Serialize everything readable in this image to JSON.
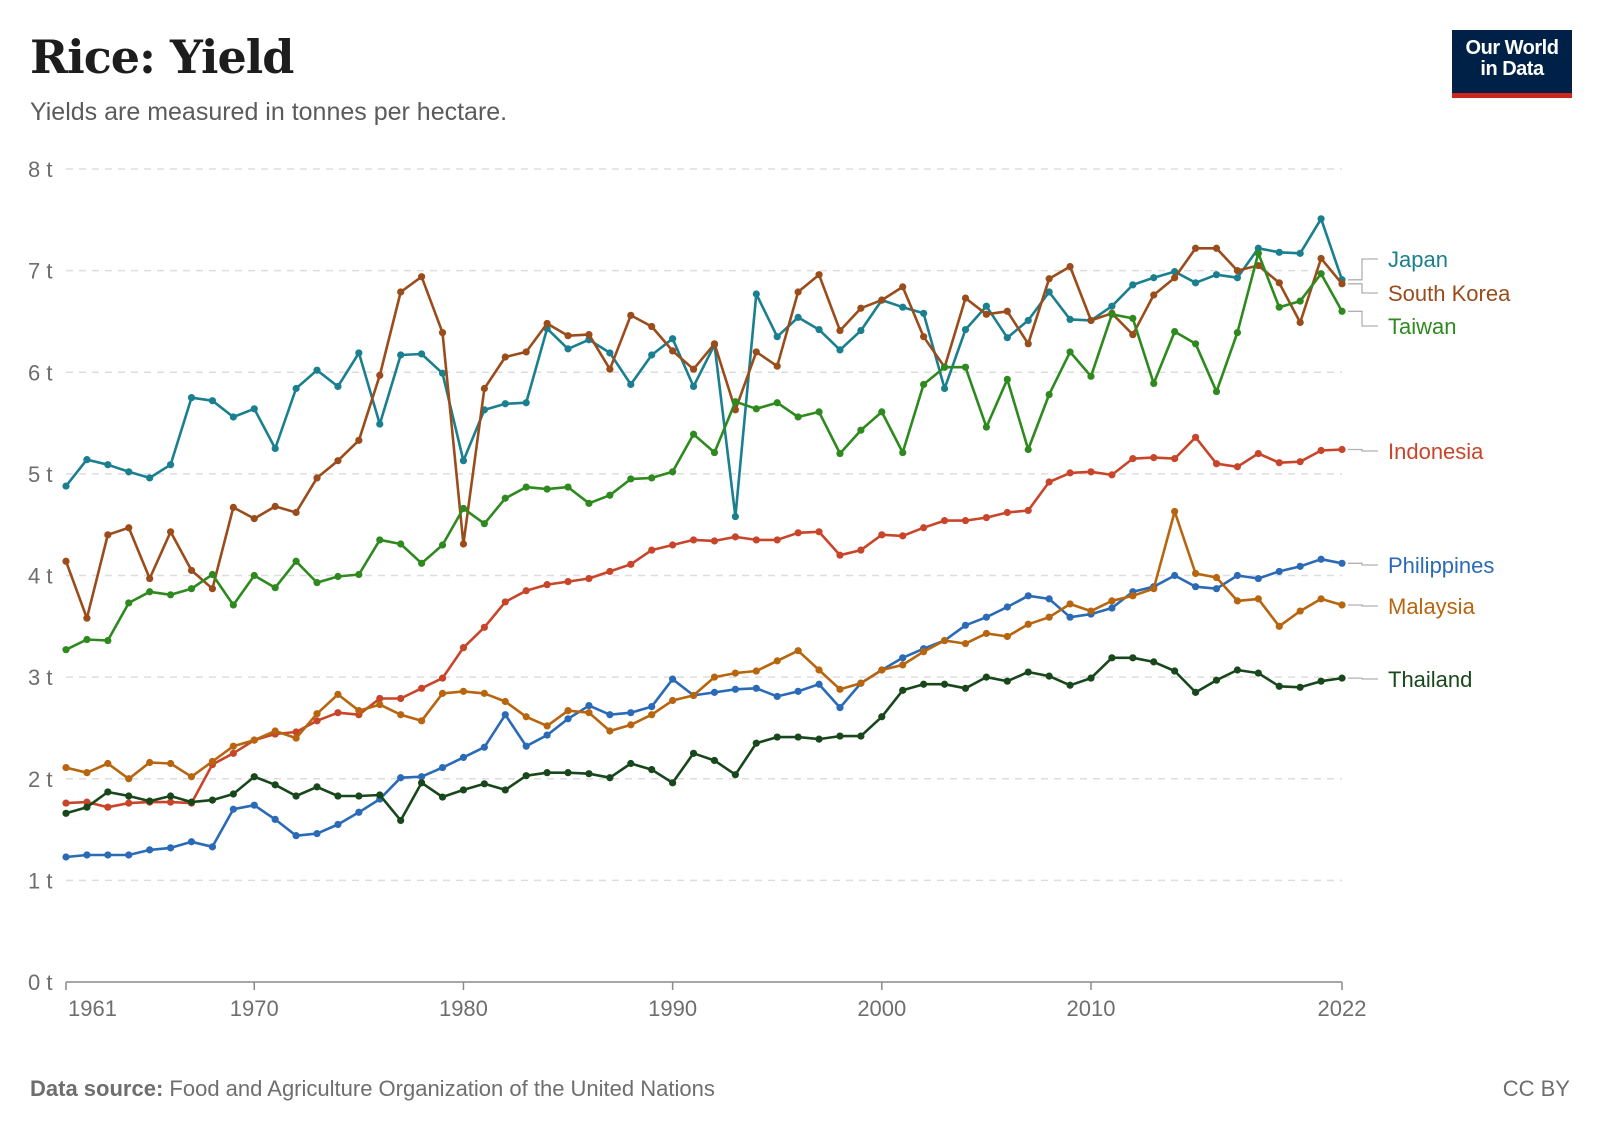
{
  "header": {
    "title": "Rice: Yield",
    "subtitle": "Yields are measured in tonnes per hectare.",
    "logo_line1": "Our World",
    "logo_line2": "in Data"
  },
  "footer": {
    "source_label": "Data source:",
    "source_text": "Food and Agriculture Organization of the United Nations",
    "license": "CC BY"
  },
  "chart_data": {
    "type": "line",
    "title": "Rice: Yield",
    "subtitle": "Yields are measured in tonnes per hectare.",
    "xlabel": "",
    "ylabel": "",
    "xlim": [
      1961,
      2022
    ],
    "ylim": [
      0,
      8
    ],
    "y_ticks": [
      0,
      1,
      2,
      3,
      4,
      5,
      6,
      7,
      8
    ],
    "y_tick_labels": [
      "0 t",
      "1 t",
      "2 t",
      "3 t",
      "4 t",
      "5 t",
      "6 t",
      "7 t",
      "8 t"
    ],
    "x_ticks": [
      1961,
      1970,
      1980,
      1990,
      2000,
      2010,
      2022
    ],
    "x_tick_labels": [
      "1961",
      "1970",
      "1980",
      "1990",
      "2000",
      "2010",
      "2022"
    ],
    "grid": "horizontal dashed",
    "legend": "line-end labels on the right",
    "x": [
      1961,
      1962,
      1963,
      1964,
      1965,
      1966,
      1967,
      1968,
      1969,
      1970,
      1971,
      1972,
      1973,
      1974,
      1975,
      1976,
      1977,
      1978,
      1979,
      1980,
      1981,
      1982,
      1983,
      1984,
      1985,
      1986,
      1987,
      1988,
      1989,
      1990,
      1991,
      1992,
      1993,
      1994,
      1995,
      1996,
      1997,
      1998,
      1999,
      2000,
      2001,
      2002,
      2003,
      2004,
      2005,
      2006,
      2007,
      2008,
      2009,
      2010,
      2011,
      2012,
      2013,
      2014,
      2015,
      2016,
      2017,
      2018,
      2019,
      2020,
      2021,
      2022
    ],
    "series": [
      {
        "name": "Japan",
        "color": "#1a7f8e",
        "values": [
          4.88,
          5.14,
          5.09,
          5.02,
          4.96,
          5.09,
          5.75,
          5.72,
          5.56,
          5.64,
          5.25,
          5.84,
          6.02,
          5.86,
          6.19,
          5.49,
          6.17,
          6.18,
          5.99,
          5.13,
          5.63,
          5.69,
          5.7,
          6.43,
          6.23,
          6.32,
          6.19,
          5.88,
          6.17,
          6.33,
          5.86,
          6.27,
          4.58,
          6.77,
          6.35,
          6.54,
          6.42,
          6.22,
          6.41,
          6.71,
          6.64,
          6.58,
          5.84,
          6.42,
          6.65,
          6.34,
          6.51,
          6.79,
          6.52,
          6.51,
          6.65,
          6.86,
          6.93,
          6.99,
          6.88,
          6.96,
          6.93,
          7.22,
          7.18,
          7.17,
          7.51,
          6.91
        ]
      },
      {
        "name": "South Korea",
        "color": "#9a4c1b",
        "values": [
          4.14,
          3.58,
          4.4,
          4.47,
          3.97,
          4.43,
          4.05,
          3.87,
          4.67,
          4.56,
          4.68,
          4.62,
          4.96,
          5.13,
          5.33,
          5.97,
          6.79,
          6.94,
          6.39,
          4.31,
          5.84,
          6.15,
          6.2,
          6.48,
          6.36,
          6.37,
          6.03,
          6.56,
          6.45,
          6.21,
          6.03,
          6.28,
          5.63,
          6.2,
          6.06,
          6.79,
          6.96,
          6.41,
          6.63,
          6.71,
          6.84,
          6.35,
          6.05,
          6.73,
          6.57,
          6.6,
          6.28,
          6.92,
          7.04,
          6.51,
          6.58,
          6.37,
          6.76,
          6.93,
          7.22,
          7.22,
          7.0,
          7.05,
          6.88,
          6.49,
          7.12,
          6.87
        ]
      },
      {
        "name": "Taiwan",
        "color": "#2e8a1e",
        "values": [
          3.27,
          3.37,
          3.36,
          3.73,
          3.84,
          3.81,
          3.87,
          4.01,
          3.71,
          4.0,
          3.88,
          4.14,
          3.93,
          3.99,
          4.01,
          4.35,
          4.31,
          4.12,
          4.3,
          4.66,
          4.51,
          4.76,
          4.87,
          4.85,
          4.87,
          4.71,
          4.79,
          4.95,
          4.96,
          5.02,
          5.39,
          5.21,
          5.71,
          5.64,
          5.7,
          5.56,
          5.61,
          5.2,
          5.43,
          5.61,
          5.21,
          5.88,
          6.05,
          6.05,
          5.46,
          5.93,
          5.24,
          5.78,
          6.2,
          5.96,
          6.57,
          6.53,
          5.89,
          6.4,
          6.28,
          5.81,
          6.39,
          7.17,
          6.64,
          6.7,
          6.97,
          6.6
        ]
      },
      {
        "name": "Indonesia",
        "color": "#c9452a",
        "values": [
          1.76,
          1.77,
          1.72,
          1.76,
          1.77,
          1.77,
          1.76,
          2.14,
          2.25,
          2.38,
          2.44,
          2.46,
          2.57,
          2.65,
          2.63,
          2.79,
          2.79,
          2.89,
          2.99,
          3.29,
          3.49,
          3.74,
          3.85,
          3.91,
          3.94,
          3.97,
          4.04,
          4.11,
          4.25,
          4.3,
          4.35,
          4.34,
          4.38,
          4.35,
          4.35,
          4.42,
          4.43,
          4.2,
          4.25,
          4.4,
          4.39,
          4.47,
          4.54,
          4.54,
          4.57,
          4.62,
          4.64,
          4.92,
          5.01,
          5.02,
          4.99,
          5.15,
          5.16,
          5.15,
          5.36,
          5.1,
          5.07,
          5.2,
          5.11,
          5.12,
          5.23,
          5.24
        ]
      },
      {
        "name": "Philippines",
        "color": "#2a6ab6",
        "values": [
          1.23,
          1.25,
          1.25,
          1.25,
          1.3,
          1.32,
          1.38,
          1.33,
          1.7,
          1.74,
          1.6,
          1.44,
          1.46,
          1.55,
          1.67,
          1.8,
          2.01,
          2.02,
          2.11,
          2.21,
          2.31,
          2.63,
          2.32,
          2.43,
          2.59,
          2.72,
          2.63,
          2.65,
          2.71,
          2.98,
          2.82,
          2.85,
          2.88,
          2.89,
          2.81,
          2.86,
          2.93,
          2.7,
          2.94,
          3.07,
          3.19,
          3.28,
          3.36,
          3.51,
          3.59,
          3.69,
          3.8,
          3.77,
          3.59,
          3.62,
          3.68,
          3.84,
          3.89,
          4.0,
          3.89,
          3.87,
          4.0,
          3.97,
          4.04,
          4.09,
          4.16,
          4.12
        ]
      },
      {
        "name": "Malaysia",
        "color": "#b8650f",
        "values": [
          2.11,
          2.06,
          2.15,
          2.0,
          2.16,
          2.15,
          2.02,
          2.17,
          2.32,
          2.38,
          2.47,
          2.4,
          2.64,
          2.83,
          2.67,
          2.73,
          2.63,
          2.57,
          2.84,
          2.86,
          2.84,
          2.76,
          2.61,
          2.52,
          2.67,
          2.65,
          2.47,
          2.53,
          2.63,
          2.77,
          2.82,
          3.0,
          3.04,
          3.06,
          3.16,
          3.26,
          3.07,
          2.88,
          2.94,
          3.07,
          3.12,
          3.25,
          3.36,
          3.33,
          3.43,
          3.4,
          3.52,
          3.59,
          3.72,
          3.65,
          3.75,
          3.8,
          3.87,
          4.63,
          4.02,
          3.98,
          3.75,
          3.77,
          3.5,
          3.65,
          3.77,
          3.71
        ]
      },
      {
        "name": "Thailand",
        "color": "#18471b",
        "values": [
          1.66,
          1.72,
          1.87,
          1.83,
          1.78,
          1.83,
          1.77,
          1.79,
          1.85,
          2.02,
          1.94,
          1.83,
          1.92,
          1.83,
          1.83,
          1.84,
          1.59,
          1.96,
          1.82,
          1.89,
          1.95,
          1.89,
          2.03,
          2.06,
          2.06,
          2.05,
          2.01,
          2.15,
          2.09,
          1.96,
          2.25,
          2.18,
          2.04,
          2.35,
          2.41,
          2.41,
          2.39,
          2.42,
          2.42,
          2.61,
          2.87,
          2.93,
          2.93,
          2.89,
          3.0,
          2.96,
          3.05,
          3.01,
          2.92,
          2.99,
          3.19,
          3.19,
          3.15,
          3.06,
          2.85,
          2.97,
          3.07,
          3.04,
          2.91,
          2.9,
          2.96,
          2.99
        ]
      }
    ]
  }
}
